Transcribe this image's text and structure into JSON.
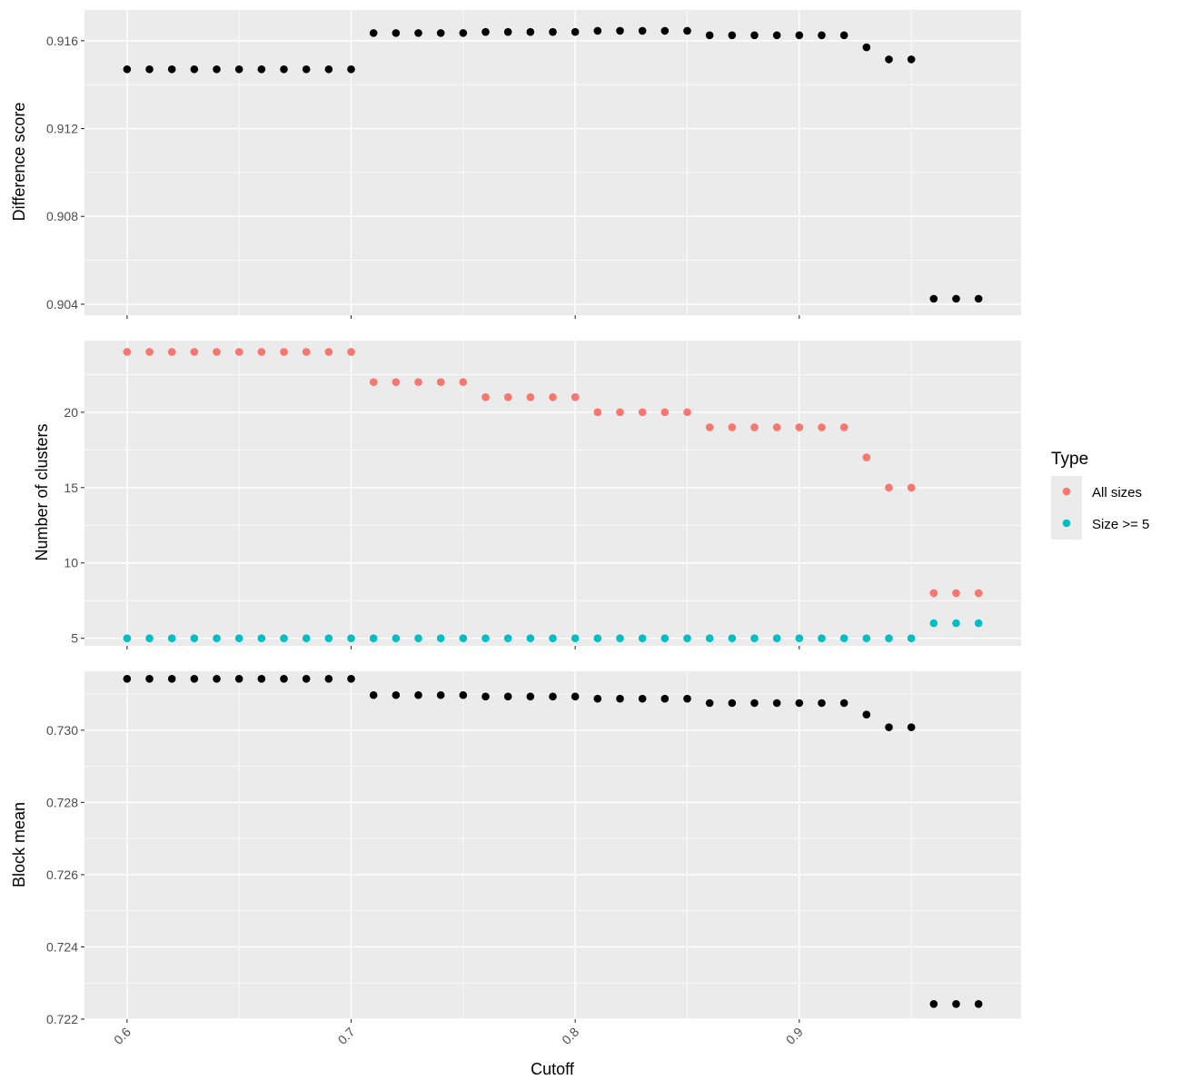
{
  "colors": {
    "panel_bg": "#ebebeb",
    "grid_major": "#ffffff",
    "point_black": "#000000",
    "all_sizes": "#f8766d",
    "size_ge_5": "#00bfc4",
    "tick_text": "#4d4d4d",
    "tick_mark": "#333333"
  },
  "chart_data": {
    "type": "scatter",
    "shared_x": {
      "label": "Cutoff",
      "range": [
        0.581,
        0.999
      ],
      "ticks": [
        "0.6",
        "0.7",
        "0.8",
        "0.9"
      ],
      "tick_values": [
        0.6,
        0.7,
        0.8,
        0.9
      ],
      "values": [
        0.6,
        0.61,
        0.62,
        0.63,
        0.64,
        0.65,
        0.66,
        0.67,
        0.68,
        0.69,
        0.7,
        0.71,
        0.72,
        0.73,
        0.74,
        0.75,
        0.76,
        0.77,
        0.78,
        0.79,
        0.8,
        0.81,
        0.82,
        0.83,
        0.84,
        0.85,
        0.86,
        0.87,
        0.88,
        0.89,
        0.9,
        0.91,
        0.92,
        0.93,
        0.94,
        0.95,
        0.96,
        0.97,
        0.98
      ]
    },
    "panels": [
      {
        "ylabel": "Difference score",
        "ylim": [
          0.9035,
          0.9174
        ],
        "yticks": [
          "0.904",
          "0.908",
          "0.912",
          "0.916"
        ],
        "ytick_values": [
          0.904,
          0.908,
          0.912,
          0.916
        ],
        "grid": true,
        "series": [
          {
            "color": "#000000",
            "y": [
              0.9147,
              0.9147,
              0.9147,
              0.9147,
              0.9147,
              0.9147,
              0.9147,
              0.9147,
              0.9147,
              0.9147,
              0.9147,
              0.91635,
              0.91635,
              0.91635,
              0.91635,
              0.91635,
              0.9164,
              0.9164,
              0.9164,
              0.9164,
              0.9164,
              0.91645,
              0.91645,
              0.91645,
              0.91645,
              0.91645,
              0.91625,
              0.91625,
              0.91625,
              0.91625,
              0.91625,
              0.91625,
              0.91625,
              0.9157,
              0.91515,
              0.91515,
              0.90425,
              0.90425,
              0.90425
            ]
          }
        ]
      },
      {
        "ylabel": "Number of clusters",
        "ylim": [
          4.5,
          24.75
        ],
        "yticks": [
          "5",
          "10",
          "15",
          "20"
        ],
        "ytick_values": [
          5,
          10,
          15,
          20
        ],
        "grid": true,
        "series": [
          {
            "name": "All sizes",
            "color": "#f8766d",
            "y": [
              24,
              24,
              24,
              24,
              24,
              24,
              24,
              24,
              24,
              24,
              24,
              22,
              22,
              22,
              22,
              22,
              21,
              21,
              21,
              21,
              21,
              20,
              20,
              20,
              20,
              20,
              19,
              19,
              19,
              19,
              19,
              19,
              19,
              17,
              15,
              15,
              8,
              8,
              8
            ]
          },
          {
            "name": "Size >= 5",
            "color": "#00bfc4",
            "y": [
              5,
              5,
              5,
              5,
              5,
              5,
              5,
              5,
              5,
              5,
              5,
              5,
              5,
              5,
              5,
              5,
              5,
              5,
              5,
              5,
              5,
              5,
              5,
              5,
              5,
              5,
              5,
              5,
              5,
              5,
              5,
              5,
              5,
              5,
              5,
              5,
              6,
              6,
              6
            ]
          }
        ]
      },
      {
        "ylabel": "Block mean",
        "ylim": [
          0.722,
          0.73163
        ],
        "yticks": [
          "0.722",
          "0.724",
          "0.726",
          "0.728",
          "0.730"
        ],
        "ytick_values": [
          0.722,
          0.724,
          0.726,
          0.728,
          0.73
        ],
        "grid": true,
        "series": [
          {
            "color": "#000000",
            "y": [
              0.73142,
              0.73142,
              0.73142,
              0.73142,
              0.73142,
              0.73142,
              0.73142,
              0.73142,
              0.73142,
              0.73142,
              0.73142,
              0.73097,
              0.73097,
              0.73097,
              0.73097,
              0.73097,
              0.73093,
              0.73093,
              0.73093,
              0.73093,
              0.73093,
              0.73087,
              0.73087,
              0.73087,
              0.73087,
              0.73087,
              0.73075,
              0.73075,
              0.73075,
              0.73075,
              0.73075,
              0.73075,
              0.73075,
              0.73043,
              0.73008,
              0.73008,
              0.72242,
              0.72242,
              0.72242
            ]
          }
        ]
      }
    ],
    "legend": {
      "title": "Type",
      "placement": "right",
      "items": [
        {
          "label": "All sizes",
          "color": "#f8766d"
        },
        {
          "label": "Size >= 5",
          "color": "#00bfc4"
        }
      ]
    }
  }
}
